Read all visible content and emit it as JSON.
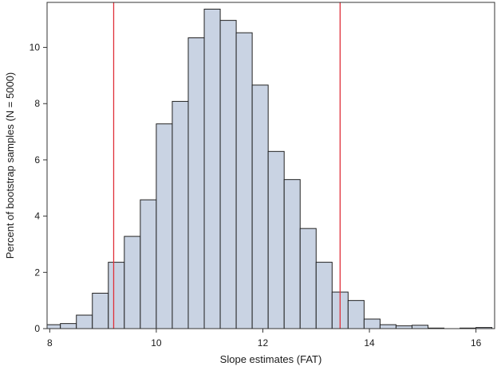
{
  "chart_data": {
    "type": "bar",
    "subtype": "histogram",
    "xlabel": "Slope estimates (FAT)",
    "ylabel": "Percent of bootstrap samples (N = 5000)",
    "xlim": [
      7.95,
      16.35
    ],
    "ylim": [
      0,
      11.6
    ],
    "x_ticks": [
      8,
      10,
      12,
      14,
      16
    ],
    "y_ticks": [
      0,
      2,
      4,
      6,
      8,
      10
    ],
    "bin_width": 0.3,
    "bins": [
      {
        "start": 7.9,
        "end": 8.2,
        "value": 0.14
      },
      {
        "start": 8.2,
        "end": 8.5,
        "value": 0.18
      },
      {
        "start": 8.5,
        "end": 8.8,
        "value": 0.48
      },
      {
        "start": 8.8,
        "end": 9.1,
        "value": 1.26
      },
      {
        "start": 9.1,
        "end": 9.4,
        "value": 2.36
      },
      {
        "start": 9.4,
        "end": 9.7,
        "value": 3.28
      },
      {
        "start": 9.7,
        "end": 10.0,
        "value": 4.58
      },
      {
        "start": 10.0,
        "end": 10.3,
        "value": 7.28
      },
      {
        "start": 10.3,
        "end": 10.6,
        "value": 8.08
      },
      {
        "start": 10.6,
        "end": 10.9,
        "value": 10.34
      },
      {
        "start": 10.9,
        "end": 11.2,
        "value": 11.36
      },
      {
        "start": 11.2,
        "end": 11.5,
        "value": 10.96
      },
      {
        "start": 11.5,
        "end": 11.8,
        "value": 10.52
      },
      {
        "start": 11.8,
        "end": 12.1,
        "value": 8.66
      },
      {
        "start": 12.1,
        "end": 12.4,
        "value": 6.3
      },
      {
        "start": 12.4,
        "end": 12.7,
        "value": 5.3
      },
      {
        "start": 12.7,
        "end": 13.0,
        "value": 3.56
      },
      {
        "start": 13.0,
        "end": 13.3,
        "value": 2.36
      },
      {
        "start": 13.3,
        "end": 13.6,
        "value": 1.3
      },
      {
        "start": 13.6,
        "end": 13.9,
        "value": 1.0
      },
      {
        "start": 13.9,
        "end": 14.2,
        "value": 0.34
      },
      {
        "start": 14.2,
        "end": 14.5,
        "value": 0.14
      },
      {
        "start": 14.5,
        "end": 14.8,
        "value": 0.1
      },
      {
        "start": 14.8,
        "end": 15.1,
        "value": 0.12
      },
      {
        "start": 15.1,
        "end": 15.4,
        "value": 0.02
      },
      {
        "start": 15.4,
        "end": 15.7,
        "value": 0.0
      },
      {
        "start": 15.7,
        "end": 16.0,
        "value": 0.02
      },
      {
        "start": 16.0,
        "end": 16.3,
        "value": 0.04
      }
    ],
    "reference_lines": [
      9.2,
      13.45
    ],
    "grid": false,
    "legend": "none",
    "colors": {
      "bar_fill": "#c9d3e3",
      "bar_stroke": "#222222",
      "reference_line": "#e0303a",
      "axis": "#333333",
      "text": "#1a1a1a"
    }
  }
}
